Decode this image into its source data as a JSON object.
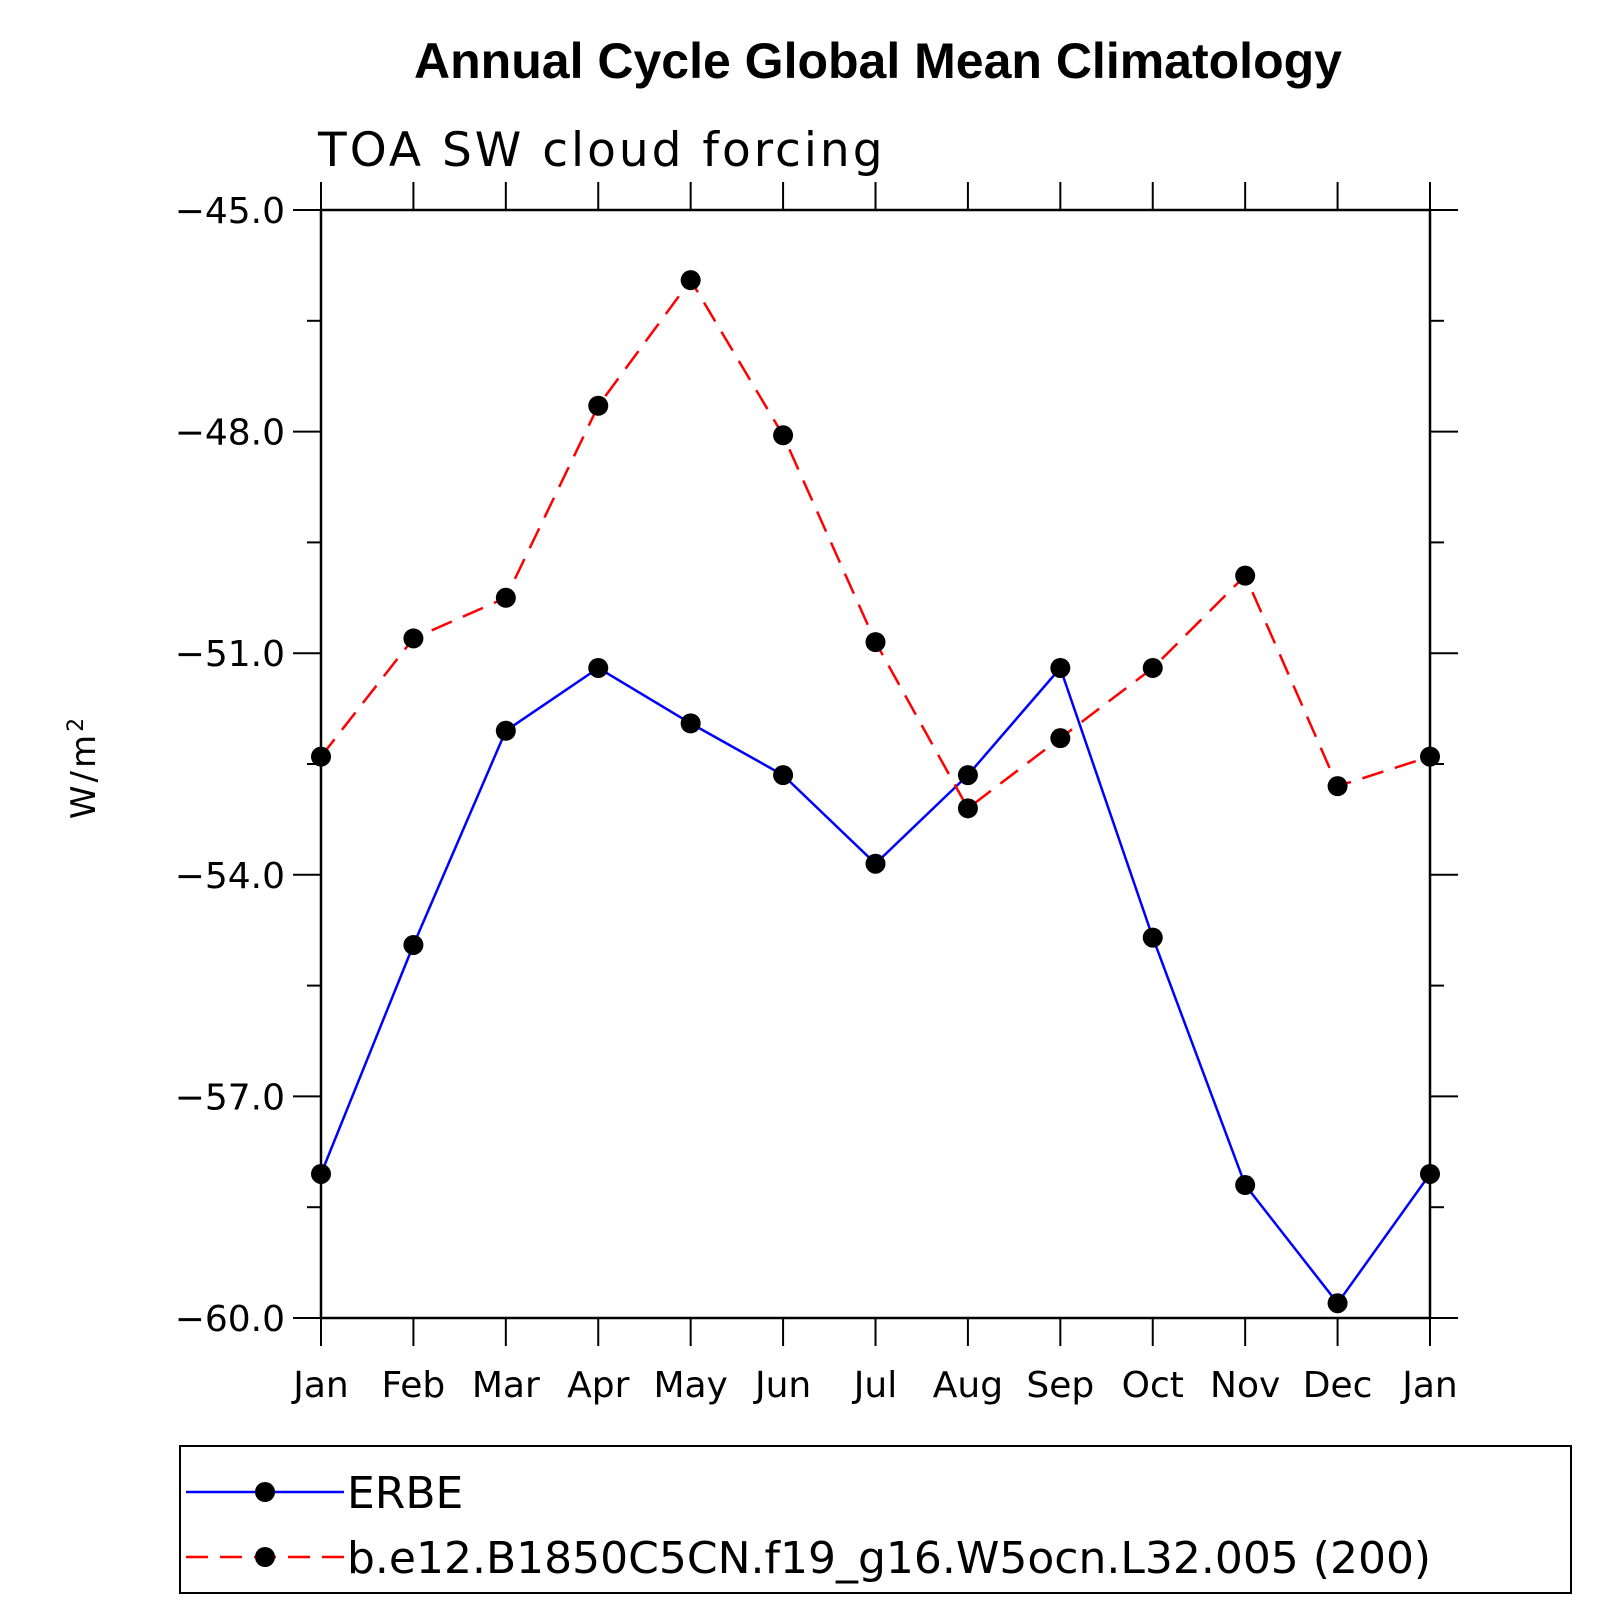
{
  "chart_data": {
    "type": "line",
    "title": "Annual Cycle Global Mean Climatology",
    "subtitle": "TOA SW cloud forcing",
    "ylabel_base": "W/m",
    "ylabel_sup": "2",
    "xlabel": "",
    "categories": [
      "Jan",
      "Feb",
      "Mar",
      "Apr",
      "May",
      "Jun",
      "Jul",
      "Aug",
      "Sep",
      "Oct",
      "Nov",
      "Dec",
      "Jan"
    ],
    "ylim": [
      -60.0,
      -45.0
    ],
    "yticks": [
      -45.0,
      -48.0,
      -51.0,
      -54.0,
      -57.0,
      -60.0
    ],
    "ytick_labels": [
      "−45.0",
      "−48.0",
      "−51.0",
      "−54.0",
      "−57.0",
      "−60.0"
    ],
    "grid": false,
    "legend_placement": "bottom",
    "series": [
      {
        "name": "ERBE",
        "color": "#0000ff",
        "dash": "solid",
        "marker": "filled-circle",
        "values": [
          -58.05,
          -54.95,
          -52.05,
          -51.2,
          -51.95,
          -52.65,
          -53.85,
          -52.65,
          -51.2,
          -54.85,
          -58.2,
          -59.8,
          -58.05
        ]
      },
      {
        "name": "b.e12.B1850C5CN.f19_g16.W5ocn.L32.005 (200)",
        "color": "#ff0000",
        "dash": "dashed",
        "marker": "filled-circle",
        "values": [
          -52.4,
          -50.8,
          -50.25,
          -47.65,
          -45.95,
          -48.05,
          -50.85,
          -53.1,
          -52.15,
          -51.2,
          -49.95,
          -52.8,
          -52.4
        ]
      }
    ]
  }
}
